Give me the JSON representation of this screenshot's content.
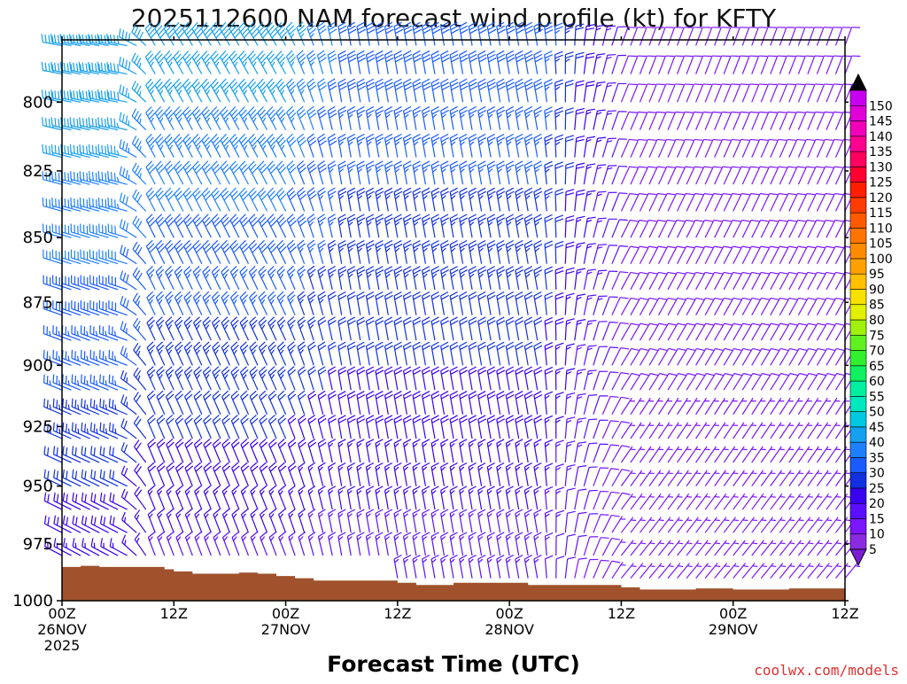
{
  "chart_data": {
    "type": "wind-barb-profile",
    "title": "2025112600 NAM forecast wind profile (kt) for KFTY",
    "xlabel": "Forecast Time (UTC)",
    "ylabel": "",
    "credit": "coolwx.com/models",
    "time_range_hours": [
      0,
      84
    ],
    "time_step_hours": 1,
    "pressure_range_hpa": [
      778,
      1000
    ],
    "pressure_levels_hpa": [
      780,
      790,
      800,
      810,
      820,
      830,
      840,
      850,
      860,
      870,
      880,
      890,
      900,
      910,
      920,
      930,
      940,
      950,
      960,
      970,
      980,
      990
    ],
    "y_ticks": [
      "800",
      "825",
      "850",
      "875",
      "900",
      "925",
      "950",
      "975",
      "1000"
    ],
    "x_ticks": [
      {
        "hour": 0,
        "label": "00Z",
        "day": "26NOV",
        "year": "2025"
      },
      {
        "hour": 12,
        "label": "12Z",
        "day": "",
        "year": ""
      },
      {
        "hour": 24,
        "label": "00Z",
        "day": "27NOV",
        "year": ""
      },
      {
        "hour": 36,
        "label": "12Z",
        "day": "",
        "year": ""
      },
      {
        "hour": 48,
        "label": "00Z",
        "day": "28NOV",
        "year": ""
      },
      {
        "hour": 60,
        "label": "12Z",
        "day": "",
        "year": ""
      },
      {
        "hour": 72,
        "label": "00Z",
        "day": "29NOV",
        "year": ""
      },
      {
        "hour": 84,
        "label": "12Z",
        "day": "",
        "year": ""
      }
    ],
    "surface_pressure_series": [
      [
        0,
        985
      ],
      [
        1,
        985
      ],
      [
        2,
        984.5
      ],
      [
        3,
        984.5
      ],
      [
        4,
        985
      ],
      [
        5,
        985
      ],
      [
        6,
        985
      ],
      [
        7,
        985
      ],
      [
        8,
        985
      ],
      [
        9,
        985
      ],
      [
        10,
        985
      ],
      [
        11,
        986
      ],
      [
        12,
        987
      ],
      [
        13,
        987
      ],
      [
        14,
        988
      ],
      [
        15,
        988
      ],
      [
        16,
        988
      ],
      [
        17,
        988
      ],
      [
        18,
        988
      ],
      [
        19,
        987.5
      ],
      [
        20,
        987.5
      ],
      [
        21,
        988
      ],
      [
        22,
        988
      ],
      [
        23,
        989
      ],
      [
        24,
        989
      ],
      [
        25,
        990
      ],
      [
        26,
        990
      ],
      [
        27,
        991
      ],
      [
        28,
        991
      ],
      [
        29,
        991
      ],
      [
        30,
        991
      ],
      [
        31,
        991
      ],
      [
        32,
        991
      ],
      [
        33,
        991
      ],
      [
        34,
        991
      ],
      [
        35,
        991
      ],
      [
        36,
        992
      ],
      [
        37,
        992
      ],
      [
        38,
        993
      ],
      [
        39,
        993
      ],
      [
        40,
        993
      ],
      [
        41,
        993
      ],
      [
        42,
        992
      ],
      [
        43,
        992
      ],
      [
        44,
        992
      ],
      [
        45,
        992
      ],
      [
        46,
        992
      ],
      [
        47,
        992
      ],
      [
        48,
        992
      ],
      [
        49,
        992
      ],
      [
        50,
        993
      ],
      [
        51,
        993
      ],
      [
        52,
        993
      ],
      [
        53,
        993
      ],
      [
        54,
        993
      ],
      [
        55,
        993
      ],
      [
        56,
        993
      ],
      [
        57,
        993
      ],
      [
        58,
        993
      ],
      [
        59,
        993
      ],
      [
        60,
        994
      ],
      [
        61,
        994
      ],
      [
        62,
        995
      ],
      [
        63,
        995
      ],
      [
        64,
        995
      ],
      [
        65,
        995
      ],
      [
        66,
        995
      ],
      [
        67,
        995
      ],
      [
        68,
        994.5
      ],
      [
        69,
        994.5
      ],
      [
        70,
        994.5
      ],
      [
        71,
        994.5
      ],
      [
        72,
        995
      ],
      [
        73,
        995
      ],
      [
        74,
        995
      ],
      [
        75,
        995
      ],
      [
        76,
        995
      ],
      [
        77,
        995
      ],
      [
        78,
        994.5
      ],
      [
        79,
        994.5
      ],
      [
        80,
        994.5
      ],
      [
        81,
        994.5
      ],
      [
        82,
        994.5
      ],
      [
        83,
        994.5
      ],
      [
        84,
        995
      ]
    ],
    "colorbar": {
      "labels": [
        "5",
        "10",
        "15",
        "20",
        "25",
        "30",
        "35",
        "40",
        "45",
        "50",
        "55",
        "60",
        "65",
        "70",
        "75",
        "80",
        "85",
        "90",
        "95",
        "100",
        "105",
        "110",
        "115",
        "120",
        "125",
        "130",
        "135",
        "140",
        "145",
        "150"
      ],
      "colors": [
        "#8a2be2",
        "#7b16ff",
        "#5a0fff",
        "#3a00f0",
        "#1230e0",
        "#1a5cff",
        "#1e80ff",
        "#16a0f0",
        "#00c8e0",
        "#00e8c0",
        "#00f0a0",
        "#10f060",
        "#30f030",
        "#60f020",
        "#a0f010",
        "#e0f000",
        "#f8e000",
        "#ffc000",
        "#ffa000",
        "#ff8c00",
        "#ff7400",
        "#ff5a00",
        "#ff3c00",
        "#ff1e00",
        "#ff0030",
        "#ff0060",
        "#ff0090",
        "#f000b8",
        "#e000d8",
        "#c800f0"
      ],
      "over_color": "#000000",
      "under_color": "#7a1fd6"
    },
    "wind_regimes": [
      {
        "from_hour": 0,
        "to_hour": 10,
        "upper_dir_deg": 280,
        "upper_speed_kt": 40,
        "lower_dir_deg": 300,
        "lower_speed_kt": 15
      },
      {
        "from_hour": 10,
        "to_hour": 30,
        "upper_dir_deg": 330,
        "upper_speed_kt": 38,
        "lower_dir_deg": 340,
        "lower_speed_kt": 12
      },
      {
        "from_hour": 30,
        "to_hour": 60,
        "upper_dir_deg": 350,
        "upper_speed_kt": 30,
        "lower_dir_deg": 350,
        "lower_speed_kt": 12
      },
      {
        "from_hour": 60,
        "to_hour": 84,
        "upper_dir_deg": 20,
        "upper_speed_kt": 10,
        "lower_dir_deg": 40,
        "lower_speed_kt": 6
      }
    ]
  }
}
